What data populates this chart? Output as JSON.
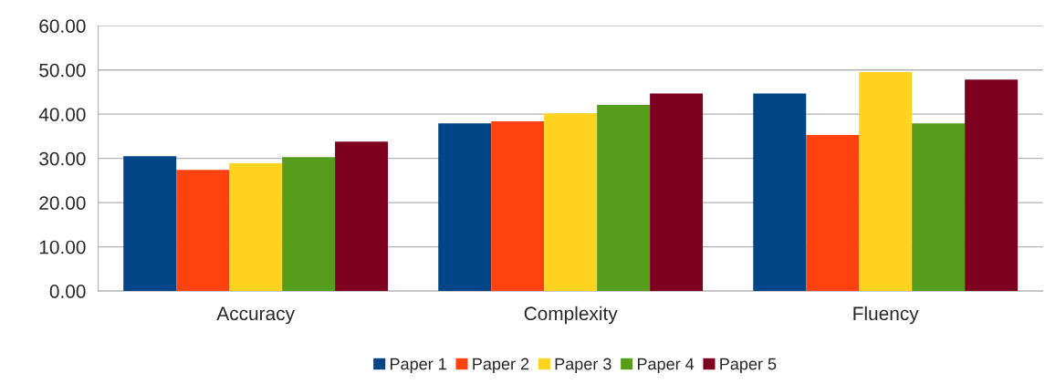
{
  "chart_data": {
    "type": "bar",
    "categories": [
      "Accuracy",
      "Complexity",
      "Fluency"
    ],
    "series": [
      {
        "name": "Paper 1",
        "color": "#004586",
        "values": [
          30.5,
          37.9,
          44.7
        ]
      },
      {
        "name": "Paper 2",
        "color": "#ff420e",
        "values": [
          27.4,
          38.4,
          35.3
        ]
      },
      {
        "name": "Paper 3",
        "color": "#ffd320",
        "values": [
          28.9,
          40.2,
          49.5
        ]
      },
      {
        "name": "Paper 4",
        "color": "#579d1c",
        "values": [
          30.3,
          42.1,
          37.9
        ]
      },
      {
        "name": "Paper 5",
        "color": "#7e0021",
        "values": [
          33.8,
          44.7,
          47.8
        ]
      }
    ],
    "ylim": [
      0,
      60
    ],
    "yticks": [
      {
        "value": 0,
        "label": "0.00"
      },
      {
        "value": 10,
        "label": "10.00"
      },
      {
        "value": 20,
        "label": "20.00"
      },
      {
        "value": 30,
        "label": "30.00"
      },
      {
        "value": 40,
        "label": "40.00"
      },
      {
        "value": 50,
        "label": "50.00"
      },
      {
        "value": 60,
        "label": "60.00"
      }
    ],
    "grid": "y",
    "legend": "bottom"
  }
}
